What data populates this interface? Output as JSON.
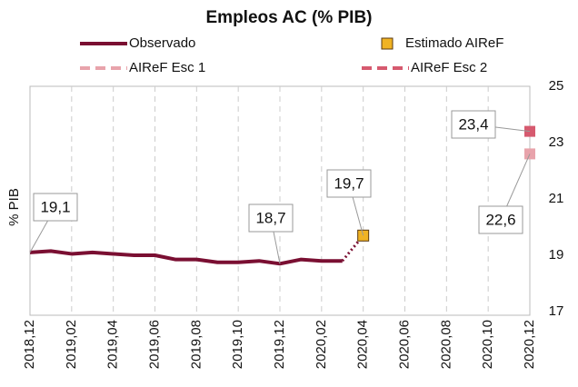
{
  "chart_data": {
    "type": "line",
    "title": "Empleos AC (% PIB)",
    "y_label": "% PIB",
    "categories": [
      "2018,12",
      null,
      "2019,02",
      null,
      "2019,04",
      null,
      "2019,06",
      null,
      "2019,08",
      null,
      "2019,10",
      null,
      "2019,12",
      null,
      "2020,02",
      null,
      "2020,04",
      null,
      "2020,06",
      null,
      "2020,08",
      null,
      "2020,10",
      null,
      "2020,12"
    ],
    "series": [
      {
        "name": "Observado",
        "color": "#7a0f32",
        "style": "solid",
        "values": [
          19.1,
          19.15,
          19.05,
          19.1,
          19.05,
          19.0,
          19.0,
          18.85,
          18.85,
          18.75,
          18.75,
          18.8,
          18.7,
          18.85,
          18.8,
          18.8,
          null,
          null,
          null,
          null,
          null,
          null,
          null,
          null,
          null
        ],
        "value_labels": [
          "19,1",
          null,
          null,
          null,
          null,
          null,
          null,
          null,
          null,
          null,
          null,
          null,
          "18,7",
          null,
          null,
          null,
          null,
          null,
          null,
          null,
          null,
          null,
          null,
          null,
          null
        ]
      },
      {
        "name": "Estimado AIReF",
        "color": "#f0b323",
        "style": "marker",
        "values": [
          null,
          null,
          null,
          null,
          null,
          null,
          null,
          null,
          null,
          null,
          null,
          null,
          null,
          null,
          null,
          null,
          19.7,
          null,
          null,
          null,
          null,
          null,
          null,
          null,
          null
        ],
        "value_labels": [
          null,
          null,
          null,
          null,
          null,
          null,
          null,
          null,
          null,
          null,
          null,
          null,
          null,
          null,
          null,
          null,
          "19,7",
          null,
          null,
          null,
          null,
          null,
          null,
          null,
          null
        ]
      },
      {
        "name": "AIReF Esc 1",
        "color": "#e8a3ab",
        "style": "dashed",
        "values": [
          null,
          null,
          null,
          null,
          null,
          null,
          null,
          null,
          null,
          null,
          null,
          null,
          null,
          null,
          null,
          null,
          19.7,
          null,
          null,
          null,
          null,
          null,
          null,
          null,
          22.6
        ],
        "value_labels": [
          null,
          null,
          null,
          null,
          null,
          null,
          null,
          null,
          null,
          null,
          null,
          null,
          null,
          null,
          null,
          null,
          null,
          null,
          null,
          null,
          null,
          null,
          null,
          null,
          "22,6"
        ]
      },
      {
        "name": "AIReF Esc 2",
        "color": "#d65a6f",
        "style": "dashed",
        "values": [
          null,
          null,
          null,
          null,
          null,
          null,
          null,
          null,
          null,
          null,
          null,
          null,
          null,
          null,
          null,
          null,
          19.7,
          null,
          null,
          null,
          null,
          null,
          null,
          null,
          23.4
        ],
        "value_labels": [
          null,
          null,
          null,
          null,
          null,
          null,
          null,
          null,
          null,
          null,
          null,
          null,
          null,
          null,
          null,
          null,
          null,
          null,
          null,
          null,
          null,
          null,
          null,
          null,
          "23,4"
        ]
      }
    ],
    "ylim": [
      17,
      25
    ],
    "yticks": [
      17,
      19,
      21,
      23,
      25
    ],
    "grid": true
  }
}
